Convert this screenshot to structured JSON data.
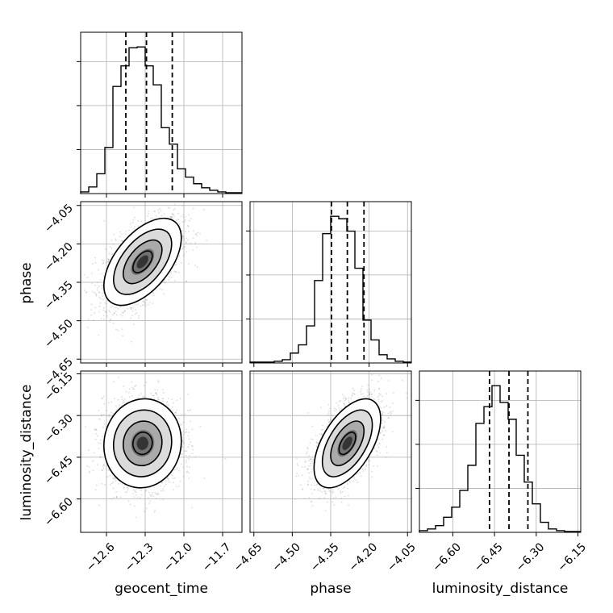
{
  "chart_data": {
    "type": "corner",
    "parameters": [
      "geocent_time",
      "phase",
      "luminosity_distance"
    ],
    "axis_labels": {
      "x": [
        "geocent_time",
        "phase",
        "luminosity_distance"
      ],
      "y": [
        "phase",
        "luminosity_distance"
      ]
    },
    "ranges": {
      "geocent_time": [
        -12.8,
        -11.55
      ],
      "phase": [
        -4.665,
        -4.035
      ],
      "luminosity_distance": [
        -6.72,
        -6.14
      ]
    },
    "ticks": {
      "geocent_time": [
        -12.6,
        -12.3,
        -12.0,
        -11.7
      ],
      "phase": [
        -4.65,
        -4.5,
        -4.35,
        -4.2,
        -4.05
      ],
      "luminosity_distance": [
        -6.6,
        -6.45,
        -6.3,
        -6.15
      ]
    },
    "tick_labels": {
      "geocent_time": [
        "−12.6",
        "−12.3",
        "−12.0",
        "−11.7"
      ],
      "phase": [
        "−4.65",
        "−4.50",
        "−4.35",
        "−4.20",
        "−4.05"
      ],
      "luminosity_distance": [
        "−6.60",
        "−6.45",
        "−6.30",
        "−6.15"
      ]
    },
    "quantiles": {
      "geocent_time": [
        -12.45,
        -12.29,
        -12.09
      ],
      "phase": [
        -4.347,
        -4.285,
        -4.22
      ],
      "luminosity_distance": [
        -6.468,
        -6.398,
        -6.33
      ]
    },
    "histograms": {
      "geocent_time": {
        "bin_edges": [
          -12.8,
          -12.7375,
          -12.675,
          -12.6125,
          -12.55,
          -12.4875,
          -12.425,
          -12.3625,
          -12.3,
          -12.2375,
          -12.175,
          -12.1125,
          -12.05,
          -11.9875,
          -11.925,
          -11.8625,
          -11.8,
          -11.7375,
          -11.675,
          -11.6125,
          -11.55
        ],
        "counts": [
          2,
          8,
          24,
          56,
          130,
          155,
          177,
          178,
          155,
          132,
          80,
          60,
          30,
          20,
          12,
          7,
          4,
          2,
          1,
          1
        ]
      },
      "phase": {
        "bin_edges": [
          -4.665,
          -4.6335,
          -4.602,
          -4.5705,
          -4.539,
          -4.5075,
          -4.476,
          -4.4445,
          -4.413,
          -4.3815,
          -4.35,
          -4.3185,
          -4.287,
          -4.2555,
          -4.224,
          -4.1925,
          -4.161,
          -4.1295,
          -4.098,
          -4.0665,
          -4.035
        ],
        "counts": [
          1,
          1,
          1,
          2,
          4,
          12,
          22,
          45,
          100,
          157,
          178,
          175,
          160,
          115,
          52,
          28,
          10,
          5,
          2,
          1
        ]
      },
      "luminosity_distance": {
        "bin_edges": [
          -6.72,
          -6.691,
          -6.662,
          -6.633,
          -6.604,
          -6.575,
          -6.546,
          -6.517,
          -6.488,
          -6.459,
          -6.43,
          -6.401,
          -6.372,
          -6.343,
          -6.314,
          -6.285,
          -6.256,
          -6.227,
          -6.198,
          -6.169,
          -6.14
        ],
        "counts": [
          2,
          4,
          8,
          18,
          30,
          50,
          80,
          130,
          150,
          175,
          155,
          135,
          92,
          60,
          34,
          12,
          4,
          2,
          1,
          1
        ]
      }
    },
    "joint": [
      {
        "x": "geocent_time",
        "y": "phase",
        "mean": [
          -12.32,
          -4.27
        ],
        "std": [
          0.15,
          0.085
        ],
        "corr": 0.55
      },
      {
        "x": "geocent_time",
        "y": "luminosity_distance",
        "mean": [
          -12.32,
          -6.4
        ],
        "std": [
          0.15,
          0.08
        ],
        "corr": 0.05
      },
      {
        "x": "phase",
        "y": "luminosity_distance",
        "mean": [
          -4.285,
          -6.4
        ],
        "std": [
          0.065,
          0.08
        ],
        "corr": 0.55
      }
    ],
    "contour_levels_sigma": [
      0.5,
      1.0,
      1.5,
      2.0
    ],
    "grid": true
  }
}
